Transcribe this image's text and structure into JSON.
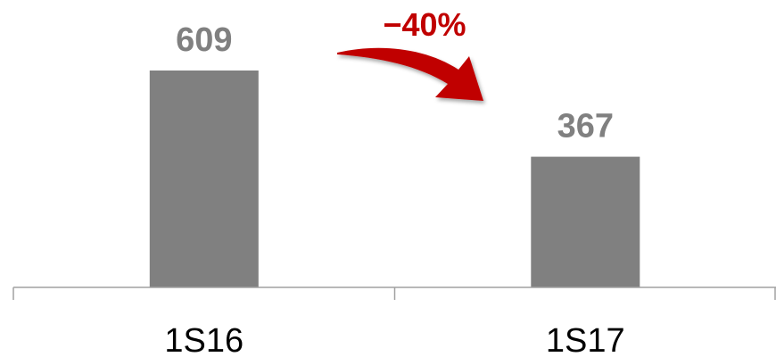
{
  "chart_data": {
    "type": "bar",
    "categories": [
      "1S16",
      "1S17"
    ],
    "values": [
      609,
      367
    ],
    "data_labels": [
      "609",
      "367"
    ],
    "title": "",
    "xlabel": "",
    "ylabel": "",
    "ylim": [
      0,
      609
    ],
    "grid": false,
    "legend": "none",
    "annotation": {
      "text": "−40%",
      "from": "1S16",
      "to": "1S17"
    }
  },
  "colors": {
    "bar": "#808080",
    "value_label": "#808080",
    "tick_label": "#000000",
    "axis": "#a0a0a0",
    "annotation": "#c00000"
  }
}
